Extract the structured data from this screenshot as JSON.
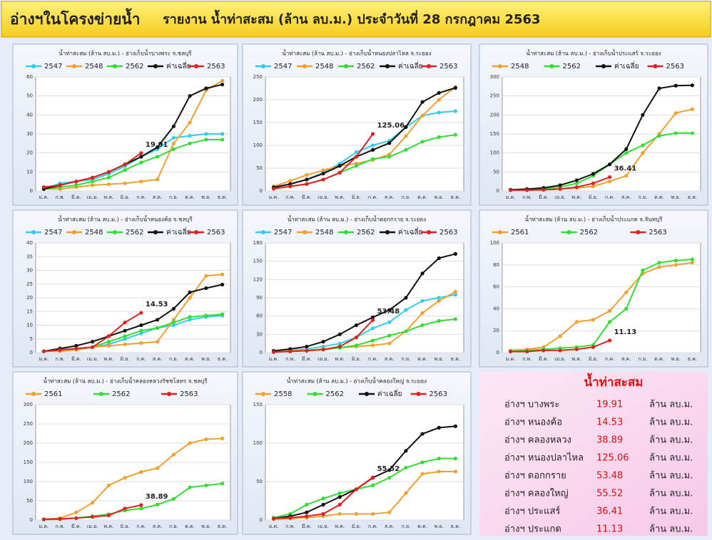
{
  "header": {
    "title": "อ่างฯในโครงข่ายน้ำ",
    "subtitle": "รายงาน น้ำท่าสะสม (ล้าน ลบ.ม.) ประจำวันที่ 28 กรกฎาคม 2563"
  },
  "chart_data": [
    {
      "type": "line",
      "title": "น้ำท่าสะสม (ล้าน ลบ.ม.) - อ่างเก็บน้ำบางพระ จ.ชลบุรี",
      "grid": true,
      "categories": [
        "ม.ค.",
        "ก.พ.",
        "มี.ค.",
        "เม.ย.",
        "พ.ค.",
        "มิ.ย.",
        "ก.ค.",
        "ส.ค.",
        "ก.ย.",
        "ต.ค.",
        "พ.ย.",
        "ธ.ค."
      ],
      "ylim": [
        0,
        60
      ],
      "yticks": [
        0,
        10,
        20,
        30,
        40,
        50,
        60
      ],
      "series": [
        {
          "name": "2547",
          "color": "#33ccee",
          "values": [
            1,
            4,
            5,
            6,
            9,
            13,
            18,
            22,
            28,
            29,
            30,
            30
          ]
        },
        {
          "name": "2548",
          "color": "#f0a030",
          "values": [
            1,
            1,
            2,
            3,
            3.5,
            4,
            5,
            6,
            25,
            36,
            53,
            58
          ]
        },
        {
          "name": "2562",
          "color": "#33dd33",
          "values": [
            1,
            2,
            3,
            5,
            7,
            11,
            15,
            18,
            22,
            25,
            27,
            27
          ]
        },
        {
          "name": "ค่าเฉลี่ย",
          "color": "#111111",
          "values": [
            1,
            3,
            5,
            7,
            10,
            14,
            18,
            23,
            34,
            50,
            54,
            56
          ]
        },
        {
          "name": "2563",
          "color": "#e02020",
          "values": [
            2,
            3,
            5,
            7,
            10,
            14,
            19.91,
            null,
            null,
            null,
            null,
            null
          ]
        }
      ]
    },
    {
      "type": "line",
      "title": "น้ำท่าสะสม (ล้าน ลบ.ม.) - อ่างเก็บน้ำหนองปลาไหล จ.ระยอง",
      "grid": true,
      "categories": [
        "ม.ค.",
        "ก.พ.",
        "มี.ค.",
        "เม.ย.",
        "พ.ค.",
        "มิ.ย.",
        "ก.ค.",
        "ส.ค.",
        "ก.ย.",
        "ต.ค.",
        "พ.ย.",
        "ธ.ค."
      ],
      "ylim": [
        0,
        250
      ],
      "yticks": [
        0,
        50,
        100,
        150,
        200,
        250
      ],
      "series": [
        {
          "name": "2547",
          "color": "#33ccee",
          "values": [
            8,
            15,
            25,
            40,
            60,
            85,
            100,
            110,
            140,
            165,
            172,
            175
          ]
        },
        {
          "name": "2548",
          "color": "#f0a030",
          "values": [
            10,
            22,
            35,
            45,
            55,
            60,
            68,
            80,
            120,
            165,
            200,
            228
          ]
        },
        {
          "name": "2562",
          "color": "#33dd33",
          "values": [
            5,
            10,
            15,
            25,
            40,
            55,
            70,
            75,
            90,
            108,
            118,
            123
          ]
        },
        {
          "name": "ค่าเฉลี่ย",
          "color": "#111111",
          "values": [
            8,
            15,
            25,
            38,
            55,
            75,
            90,
            105,
            140,
            195,
            215,
            226
          ]
        },
        {
          "name": "2563",
          "color": "#e02020",
          "values": [
            5,
            10,
            15,
            25,
            40,
            75,
            125.06,
            null,
            null,
            null,
            null,
            null
          ]
        }
      ]
    },
    {
      "type": "line",
      "title": "น้ำท่าสะสม (ล้าน ลบ.ม.) - อ่างเก็บน้ำประแสร์ จ.ระยอง",
      "grid": true,
      "categories": [
        "ม.ค.",
        "ก.พ.",
        "มี.ค.",
        "เม.ย.",
        "พ.ค.",
        "มิ.ย.",
        "ก.ค.",
        "ส.ค.",
        "ก.ย.",
        "ต.ค.",
        "พ.ย.",
        "ธ.ค."
      ],
      "ylim": [
        0,
        300
      ],
      "yticks": [
        0,
        50,
        100,
        150,
        200,
        250,
        300
      ],
      "series": [
        {
          "name": "2548",
          "color": "#f0a030",
          "values": [
            3,
            3,
            3,
            5,
            8,
            12,
            25,
            40,
            100,
            150,
            205,
            215
          ]
        },
        {
          "name": "2562",
          "color": "#33dd33",
          "values": [
            2,
            3,
            5,
            10,
            20,
            40,
            70,
            100,
            120,
            145,
            152,
            152
          ]
        },
        {
          "name": "ค่าเฉลี่ย",
          "color": "#111111",
          "values": [
            3,
            5,
            8,
            15,
            28,
            45,
            70,
            110,
            200,
            270,
            277,
            278
          ]
        },
        {
          "name": "2563",
          "color": "#e02020",
          "values": [
            2,
            2,
            3,
            5,
            10,
            20,
            36.41,
            null,
            null,
            null,
            null,
            null
          ]
        }
      ]
    },
    {
      "type": "line",
      "title": "น้ำท่าสะสม (ล้าน ลบ.ม.) - อ่างเก็บน้ำหนองค้อ จ.ชลบุรี",
      "grid": true,
      "categories": [
        "ม.ค.",
        "ก.พ.",
        "มี.ค.",
        "เม.ย.",
        "พ.ค.",
        "มิ.ย.",
        "ก.ค.",
        "ส.ค.",
        "ก.ย.",
        "ต.ค.",
        "พ.ย.",
        "ธ.ค."
      ],
      "ylim": [
        0,
        40
      ],
      "yticks": [
        0,
        5,
        10,
        15,
        20,
        25,
        30,
        35,
        40
      ],
      "series": [
        {
          "name": "2547",
          "color": "#33ccee",
          "values": [
            0.5,
            1,
            1.5,
            2,
            3,
            5,
            7,
            9,
            10,
            12,
            13,
            13.5
          ]
        },
        {
          "name": "2548",
          "color": "#f0a030",
          "values": [
            0.5,
            0.5,
            1,
            2,
            2.5,
            3,
            3.5,
            4,
            12,
            20,
            28,
            28.5
          ]
        },
        {
          "name": "2562",
          "color": "#33dd33",
          "values": [
            0.5,
            1,
            1.5,
            2,
            4,
            6,
            8,
            9,
            11,
            13,
            13.5,
            14
          ]
        },
        {
          "name": "ค่าเฉลี่ย",
          "color": "#111111",
          "values": [
            0.5,
            1.5,
            2.5,
            4,
            6,
            8,
            10,
            12,
            16,
            22,
            23.5,
            24.8
          ]
        },
        {
          "name": "2563",
          "color": "#e02020",
          "values": [
            0.5,
            1,
            1.5,
            2,
            6,
            11,
            14.53,
            null,
            null,
            null,
            null,
            null
          ]
        }
      ]
    },
    {
      "type": "line",
      "title": "น้ำท่าสะสม (ล้าน ลบ.ม.) - อ่างเก็บน้ำดอกกราย จ.ระยอง",
      "grid": true,
      "categories": [
        "ม.ค.",
        "ก.พ.",
        "มี.ค.",
        "เม.ย.",
        "พ.ค.",
        "มิ.ย.",
        "ก.ค.",
        "ส.ค.",
        "ก.ย.",
        "ต.ค.",
        "พ.ย.",
        "ธ.ค."
      ],
      "ylim": [
        0,
        180
      ],
      "yticks": [
        0,
        30,
        60,
        90,
        120,
        150,
        180
      ],
      "series": [
        {
          "name": "2547",
          "color": "#33ccee",
          "values": [
            2,
            4,
            6,
            10,
            15,
            25,
            40,
            50,
            70,
            85,
            90,
            95
          ]
        },
        {
          "name": "2548",
          "color": "#f0a030",
          "values": [
            2,
            3,
            4,
            6,
            8,
            10,
            12,
            15,
            35,
            65,
            85,
            100
          ]
        },
        {
          "name": "2562",
          "color": "#33dd33",
          "values": [
            1,
            2,
            3,
            5,
            8,
            12,
            20,
            28,
            35,
            45,
            52,
            55
          ]
        },
        {
          "name": "ค่าเฉลี่ย",
          "color": "#111111",
          "values": [
            3,
            6,
            10,
            18,
            30,
            45,
            58,
            70,
            90,
            130,
            155,
            162
          ]
        },
        {
          "name": "2563",
          "color": "#e02020",
          "values": [
            1,
            2,
            3,
            5,
            10,
            25,
            53.48,
            null,
            null,
            null,
            null,
            null
          ]
        }
      ]
    },
    {
      "type": "line",
      "title": "น้ำท่าสะสม (ล้าน ลบ.ม.) - อ่างเก็บน้ำประแกด จ.จันทบุรี",
      "grid": true,
      "categories": [
        "ม.ค.",
        "ก.พ.",
        "มี.ค.",
        "เม.ย.",
        "พ.ค.",
        "มิ.ย.",
        "ก.ค.",
        "ส.ค.",
        "ก.ย.",
        "ต.ค.",
        "พ.ย.",
        "ธ.ค."
      ],
      "ylim": [
        0,
        100
      ],
      "yticks": [
        0,
        20,
        40,
        60,
        80,
        100
      ],
      "series": [
        {
          "name": "2561",
          "color": "#f0a030",
          "values": [
            2,
            3,
            5,
            15,
            28,
            30,
            38,
            55,
            72,
            78,
            80,
            82
          ]
        },
        {
          "name": "2562",
          "color": "#33dd33",
          "values": [
            1,
            2,
            3,
            4,
            5,
            7,
            28,
            40,
            75,
            82,
            84,
            85
          ]
        },
        {
          "name": "2563",
          "color": "#e02020",
          "values": [
            1,
            1,
            2,
            2,
            3,
            5,
            11.13,
            null,
            null,
            null,
            null,
            null
          ]
        }
      ]
    },
    {
      "type": "line",
      "title": "น้ำท่าสะสม (ล้าน ลบ.ม.) - อ่างเก็บน้ำคลองหลวงรัชชโลทร จ.ชลบุรี",
      "grid": true,
      "categories": [
        "ม.ค.",
        "ก.พ.",
        "มี.ค.",
        "เม.ย.",
        "พ.ค.",
        "มิ.ย.",
        "ก.ค.",
        "ส.ค.",
        "ก.ย.",
        "ต.ค.",
        "พ.ย.",
        "ธ.ค."
      ],
      "ylim": [
        0,
        300
      ],
      "yticks": [
        0,
        50,
        100,
        150,
        200,
        250,
        300
      ],
      "series": [
        {
          "name": "2561",
          "color": "#f0a030",
          "values": [
            2,
            5,
            20,
            45,
            90,
            110,
            125,
            135,
            170,
            200,
            210,
            212
          ]
        },
        {
          "name": "2562",
          "color": "#33dd33",
          "values": [
            1,
            2,
            5,
            10,
            15,
            25,
            30,
            40,
            55,
            85,
            90,
            95
          ]
        },
        {
          "name": "2563",
          "color": "#e02020",
          "values": [
            2,
            3,
            5,
            8,
            12,
            30,
            38.89,
            null,
            null,
            null,
            null,
            null
          ]
        }
      ]
    },
    {
      "type": "line",
      "title": "น้ำท่าสะสม (ล้าน ลบ.ม.) - อ่างเก็บน้ำคลองใหญ่ จ.ระยอง",
      "grid": true,
      "categories": [
        "ม.ค.",
        "ก.พ.",
        "มี.ค.",
        "เม.ย.",
        "พ.ค.",
        "มิ.ย.",
        "ก.ค.",
        "ส.ค.",
        "ก.ย.",
        "ต.ค.",
        "พ.ย.",
        "ธ.ค."
      ],
      "ylim": [
        0,
        150
      ],
      "yticks": [
        0,
        50,
        100,
        150
      ],
      "series": [
        {
          "name": "2558",
          "color": "#f0a030",
          "values": [
            1,
            2,
            3,
            5,
            8,
            8,
            8,
            10,
            35,
            60,
            63,
            63
          ]
        },
        {
          "name": "2562",
          "color": "#33dd33",
          "values": [
            3,
            8,
            20,
            28,
            35,
            40,
            45,
            55,
            68,
            75,
            80,
            80
          ]
        },
        {
          "name": "ค่าเฉลี่ย",
          "color": "#111111",
          "values": [
            2,
            5,
            10,
            20,
            30,
            40,
            55,
            65,
            90,
            112,
            120,
            122
          ]
        },
        {
          "name": "2563",
          "color": "#e02020",
          "values": [
            2,
            3,
            5,
            8,
            20,
            40,
            55.52,
            null,
            null,
            null,
            null,
            null
          ]
        }
      ]
    }
  ],
  "summary": {
    "title": "น้ำท่าสะสม",
    "rows": [
      {
        "name": "อ่างฯ บางพระ",
        "value": "19.91",
        "unit": "ล้าน ลบ.ม."
      },
      {
        "name": "อ่างฯ หนองค้อ",
        "value": "14.53",
        "unit": "ล้าน ลบ.ม."
      },
      {
        "name": "อ่างฯ คลองหลวง",
        "value": "38.89",
        "unit": "ล้าน ลบ.ม."
      },
      {
        "name": "อ่างฯ หนองปลาไหล",
        "value": "125.06",
        "unit": "ล้าน ลบ.ม."
      },
      {
        "name": "อ่างฯ ดอกกราย",
        "value": "53.48",
        "unit": "ล้าน ลบ.ม."
      },
      {
        "name": "อ่างฯ คลองใหญ่",
        "value": "55.52",
        "unit": "ล้าน ลบ.ม."
      },
      {
        "name": "อ่างฯ ประแสร์",
        "value": "36.41",
        "unit": "ล้าน ลบ.ม."
      },
      {
        "name": "อ่างฯ ประแกด",
        "value": "11.13",
        "unit": "ล้าน ลบ.ม."
      }
    ]
  }
}
